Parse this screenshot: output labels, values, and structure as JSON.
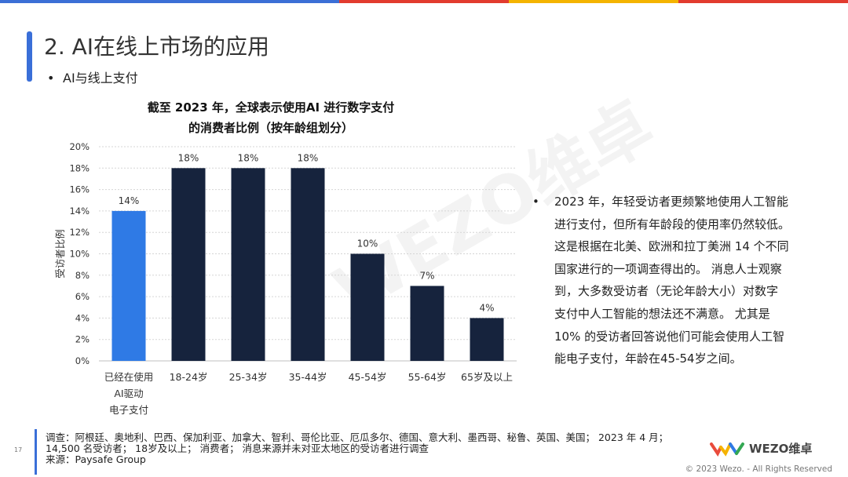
{
  "colors": {
    "top_bar": [
      "#3b6fd6",
      "#3b6fd6",
      "#e23b2f",
      "#f4b400",
      "#e23b2f"
    ],
    "accent": "#3a6fd8",
    "bar_highlight": "#2f7ae5",
    "bar_default": "#16233d",
    "logo": [
      "#e94b3c",
      "#f5b301",
      "#2f7ae5",
      "#34a853"
    ]
  },
  "slide": {
    "title": "2. AI在线上市场的应用",
    "bullet": "AI与线上支付",
    "page_number": "17"
  },
  "chart_data": {
    "type": "bar",
    "title_lines": [
      "截至 2023 年，全球表示使用AI 进行数字支付",
      "的消费者比例（按年龄组划分）"
    ],
    "categories": [
      "已经在使用\nAI驱动\n电子支付",
      "18-24岁",
      "25-34岁",
      "35-44岁",
      "45-54岁",
      "55-64岁",
      "65岁及以上"
    ],
    "values": [
      14,
      18,
      18,
      18,
      10,
      7,
      4
    ],
    "data_labels": [
      "14%",
      "18%",
      "18%",
      "18%",
      "10%",
      "7%",
      "4%"
    ],
    "highlight_index": 0,
    "ylabel": "受访者比例",
    "ylim": [
      0,
      20
    ],
    "yticks": [
      0,
      2,
      4,
      6,
      8,
      10,
      12,
      14,
      16,
      18,
      20
    ],
    "ytick_labels": [
      "0%",
      "2%",
      "4%",
      "6%",
      "8%",
      "10%",
      "12%",
      "14%",
      "16%",
      "18%",
      "20%"
    ],
    "grid": true
  },
  "side_note": {
    "lines": [
      "2023 年，年轻受访者更频繁地使用人工智能",
      "进行支付，但所有年龄段的使用率仍然较低。",
      "这是根据在北美、欧洲和拉丁美洲 14 个不同",
      "国家进行的一项调查得出的。 消息人士观察",
      "到，大多数受访者（无论年龄大小）对数字",
      "支付中人工智能的想法还不满意。 尤其是",
      "10% 的受访者回答说他们可能会使用人工智",
      "能电子支付，年龄在45-54岁之间。"
    ]
  },
  "footer": {
    "lines": [
      "调查：阿根廷、奥地利、巴西、保加利亚、加拿大、智利、哥伦比亚、厄瓜多尔、德国、意大利、墨西哥、秘鲁、英国、美国；  2023 年 4 月；",
      "14,500 名受访者；  18岁及以上；  消费者；  消息来源并未对亚太地区的受访者进行调查",
      "来源：Paysafe Group"
    ]
  },
  "brand": {
    "logo_text": "WEZO维卓",
    "watermark": "WEZO维卓",
    "copyright": "© 2023 Wezo. - All Rights Reserved"
  }
}
